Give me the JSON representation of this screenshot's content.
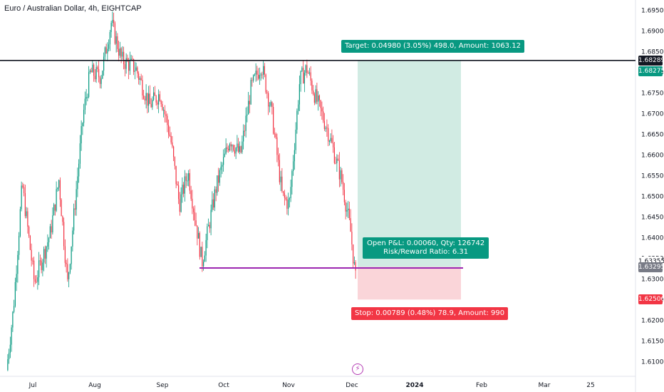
{
  "header": {
    "title": "Euro / Australian Dollar, 4h, EIGHTCAP"
  },
  "chart_data": {
    "type": "candlestick",
    "symbol": "EURAUD",
    "timeframe": "4h",
    "y_axis_ticks": [
      "1.69500",
      "1.69000",
      "1.68500",
      "1.68000",
      "1.67500",
      "1.67000",
      "1.66500",
      "1.66000",
      "1.65500",
      "1.65000",
      "1.64500",
      "1.64000",
      "1.63500",
      "1.63000",
      "1.62500",
      "1.62000",
      "1.61500",
      "1.61000"
    ],
    "ylim": [
      1.6065,
      1.6975
    ],
    "x_axis_labels": [
      "Jul",
      "Aug",
      "Sep",
      "Oct",
      "Nov",
      "Dec",
      "2024",
      "Feb",
      "Mar",
      "25"
    ],
    "price_path": [
      {
        "t": 0.0,
        "p": 1.608
      },
      {
        "t": 0.02,
        "p": 1.623
      },
      {
        "t": 0.045,
        "p": 1.653
      },
      {
        "t": 0.08,
        "p": 1.629
      },
      {
        "t": 0.125,
        "p": 1.641
      },
      {
        "t": 0.15,
        "p": 1.654
      },
      {
        "t": 0.175,
        "p": 1.629
      },
      {
        "t": 0.22,
        "p": 1.67
      },
      {
        "t": 0.24,
        "p": 1.68
      },
      {
        "t": 0.27,
        "p": 1.679
      },
      {
        "t": 0.3,
        "p": 1.692
      },
      {
        "t": 0.33,
        "p": 1.683
      },
      {
        "t": 0.37,
        "p": 1.681
      },
      {
        "t": 0.41,
        "p": 1.672
      },
      {
        "t": 0.44,
        "p": 1.675
      },
      {
        "t": 0.47,
        "p": 1.664
      },
      {
        "t": 0.495,
        "p": 1.648
      },
      {
        "t": 0.52,
        "p": 1.656
      },
      {
        "t": 0.56,
        "p": 1.634
      },
      {
        "t": 0.6,
        "p": 1.652
      },
      {
        "t": 0.64,
        "p": 1.664
      },
      {
        "t": 0.67,
        "p": 1.66
      },
      {
        "t": 0.7,
        "p": 1.676
      },
      {
        "t": 0.73,
        "p": 1.682
      },
      {
        "t": 0.76,
        "p": 1.67
      },
      {
        "t": 0.79,
        "p": 1.65
      },
      {
        "t": 0.81,
        "p": 1.648
      },
      {
        "t": 0.84,
        "p": 1.678
      },
      {
        "t": 0.86,
        "p": 1.681
      },
      {
        "t": 0.885,
        "p": 1.674
      },
      {
        "t": 0.92,
        "p": 1.666
      },
      {
        "t": 0.96,
        "p": 1.654
      },
      {
        "t": 0.985,
        "p": 1.642
      },
      {
        "t": 1.0,
        "p": 1.63
      }
    ],
    "horizontal_lines": [
      {
        "name": "resistance",
        "price": 1.68289,
        "color": "#131722"
      },
      {
        "name": "support",
        "price": 1.6327,
        "color": "#9c27b0"
      }
    ],
    "position": {
      "type": "long",
      "entry": 1.63295,
      "target": 1.68275,
      "stop": 1.62506,
      "target_label": "Target: 0.04980 (3.05%) 498.0, Amount: 1063.12",
      "stop_label": "Stop: 0.00789 (0.48%) 78.9, Amount: 990",
      "pnl_label": "Open P&L: 0.00060, Qty: 126742",
      "rr_label": "Risk/Reward Ratio: 6.31"
    },
    "price_badges": [
      {
        "label": "1.68289",
        "style": "black"
      },
      {
        "label": "1.68275",
        "style": "green"
      },
      {
        "label": "1.63355",
        "style": "plain"
      },
      {
        "label": "1.63295",
        "style": "gray"
      },
      {
        "label": "1.62506",
        "style": "red"
      }
    ],
    "colors": {
      "up": "#089981",
      "down": "#f23645",
      "profit_zone": "#d1ebe3",
      "loss_zone": "#fad5d9"
    }
  }
}
